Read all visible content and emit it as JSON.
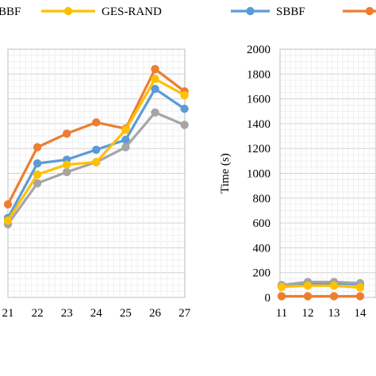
{
  "chart_data": [
    {
      "type": "line",
      "title": "",
      "xlabel": "",
      "ylabel": "",
      "x": [
        21,
        22,
        23,
        24,
        25,
        26,
        27
      ],
      "x_tick_labels": [
        "21",
        "22",
        "23",
        "24",
        "25",
        "26",
        "27"
      ],
      "ylim": [
        0,
        2000
      ],
      "y_tick_labels_visible": false,
      "grid": true,
      "series": [
        {
          "name": "SBBF",
          "color": "#5B9BD5",
          "values": [
            640,
            1080,
            1110,
            1190,
            1270,
            1680,
            1520
          ],
          "marker": "circle"
        },
        {
          "name": "",
          "color": "#ED7D31",
          "values": [
            750,
            1210,
            1320,
            1410,
            1360,
            1840,
            1660
          ],
          "marker": "circle"
        },
        {
          "name": "",
          "color": "#A5A5A5",
          "values": [
            590,
            920,
            1010,
            1090,
            1210,
            1490,
            1390
          ],
          "marker": "circle"
        },
        {
          "name": "GES-RAND",
          "color": "#FFC000",
          "values": [
            620,
            990,
            1070,
            1090,
            1350,
            1760,
            1630
          ],
          "marker": "circle"
        }
      ],
      "legend": {
        "placement": "top",
        "entries": [
          "BBF",
          "GES-RAND"
        ]
      }
    },
    {
      "type": "line",
      "title": "",
      "xlabel": "",
      "ylabel": "Time (s)",
      "x": [
        11,
        12,
        13,
        14
      ],
      "x_tick_labels": [
        "11",
        "12",
        "13",
        "14"
      ],
      "y_tick_labels": [
        "0",
        "200",
        "400",
        "600",
        "800",
        "1000",
        "1200",
        "1400",
        "1600",
        "1800",
        "2000"
      ],
      "ylim": [
        0,
        2000
      ],
      "grid": true,
      "series": [
        {
          "name": "SBBF",
          "color": "#5B9BD5",
          "values": [
            95,
            115,
            115,
            105
          ],
          "marker": "circle"
        },
        {
          "name": "",
          "color": "#ED7D31",
          "values": [
            10,
            10,
            10,
            10
          ],
          "marker": "circle"
        },
        {
          "name": "",
          "color": "#A5A5A5",
          "values": [
            100,
            125,
            125,
            115
          ],
          "marker": "circle"
        },
        {
          "name": "",
          "color": "#FFC000",
          "values": [
            85,
            95,
            95,
            80
          ],
          "marker": "circle"
        }
      ],
      "legend": {
        "placement": "top",
        "entries": [
          "SBBF",
          ""
        ]
      }
    }
  ]
}
